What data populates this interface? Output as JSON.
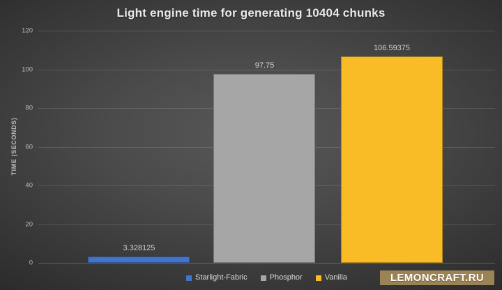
{
  "chart_data": {
    "type": "bar",
    "title": "Light engine time for generating 10404 chunks",
    "xlabel": "",
    "ylabel": "TIME (SECONDS)",
    "categories": [
      "Starlight-Fabric",
      "Phosphor",
      "Vanilla"
    ],
    "values": [
      3.328125,
      97.75,
      106.59375
    ],
    "value_labels": [
      "3.328125",
      "97.75",
      "106.59375"
    ],
    "colors": [
      "#4274c9",
      "#a6a6a6",
      "#f9bc26"
    ],
    "ylim": [
      0,
      120
    ],
    "yticks": [
      0,
      20,
      40,
      60,
      80,
      100,
      120
    ],
    "grid": true,
    "legend_position": "bottom"
  },
  "watermark": {
    "text": "LEMONCRAFT.RU",
    "bg_color": "#9b8355"
  }
}
